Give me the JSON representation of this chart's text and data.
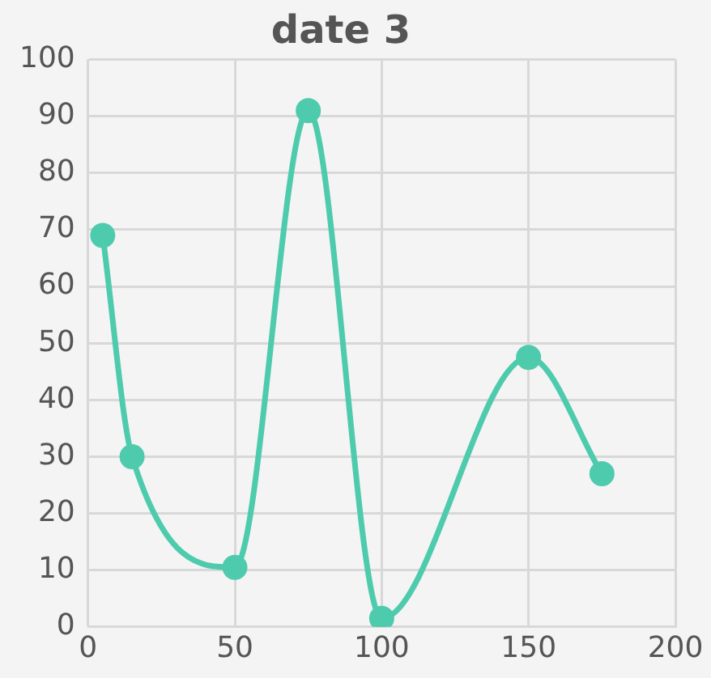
{
  "chart_data": {
    "type": "line",
    "title": "date 3",
    "x": [
      5,
      15,
      50,
      75,
      100,
      150,
      175
    ],
    "series": [
      {
        "color": "#4ecbad",
        "values": [
          69,
          30,
          10.5,
          91,
          1.5,
          47.5,
          27
        ]
      }
    ],
    "xlim": [
      0,
      200
    ],
    "xticks": [
      0,
      50,
      100,
      150,
      200
    ],
    "ylim": [
      0,
      100
    ],
    "yticks": [
      0,
      10,
      20,
      30,
      40,
      50,
      60,
      70,
      80,
      90,
      100
    ],
    "grid": true,
    "marker": "circle",
    "line_style": "solid"
  }
}
